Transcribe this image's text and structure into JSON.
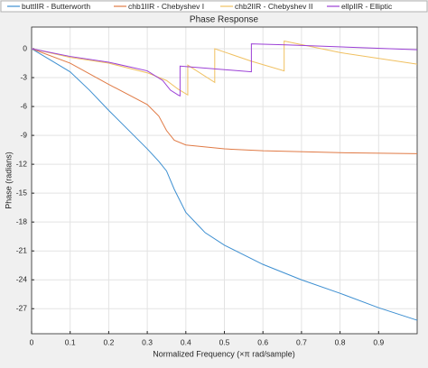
{
  "chart_data": {
    "type": "line",
    "title": "Phase Response",
    "x_label": "Normalized Frequency (×π rad/sample)",
    "y_label": "Phase (radians)",
    "xlim": [
      0,
      1
    ],
    "ylim": [
      -29.6,
      2.25
    ],
    "xticks": [
      0,
      0.1,
      0.2,
      0.3,
      0.4,
      0.5,
      0.6,
      0.7,
      0.8,
      0.9
    ],
    "yticks": [
      0,
      -3,
      -6,
      -9,
      -12,
      -15,
      -18,
      -21,
      -24,
      -27
    ],
    "grid": true,
    "legend": "top",
    "series": [
      {
        "name": "buttIIR - Butterworth",
        "color": "#3d8fd1",
        "x": [
          0,
          0.05,
          0.1,
          0.15,
          0.2,
          0.25,
          0.3,
          0.33,
          0.35,
          0.37,
          0.4,
          0.45,
          0.5,
          0.6,
          0.7,
          0.8,
          0.9,
          1.0
        ],
        "values": [
          0,
          -1.2,
          -2.4,
          -4.3,
          -6.4,
          -8.4,
          -10.4,
          -11.7,
          -12.7,
          -14.6,
          -17,
          -19.1,
          -20.4,
          -22.4,
          -24,
          -25.4,
          -26.9,
          -28.2
        ]
      },
      {
        "name": "chb1IIR - Chebyshev I",
        "color": "#e07a45",
        "x": [
          0,
          0.1,
          0.2,
          0.3,
          0.33,
          0.35,
          0.37,
          0.4,
          0.5,
          0.6,
          0.8,
          1.0
        ],
        "values": [
          0,
          -1.5,
          -3.7,
          -5.8,
          -7,
          -8.5,
          -9.5,
          -10,
          -10.4,
          -10.6,
          -10.8,
          -10.9
        ]
      },
      {
        "name": "chb2IIR - Chebyshev II",
        "color": "#f0c060",
        "x": [
          0,
          0.1,
          0.2,
          0.3,
          0.35,
          0.38,
          0.405,
          0.405,
          0.475,
          0.475,
          0.57,
          0.655,
          0.655,
          0.8,
          1.0
        ],
        "values": [
          0,
          -0.9,
          -1.5,
          -2.5,
          -3.3,
          -4.2,
          -4.8,
          -1.7,
          -3.5,
          0,
          -1.3,
          -2.3,
          0.8,
          -0.4,
          -1.6
        ]
      },
      {
        "name": "ellpIIR - Elliptic",
        "color": "#9b3fd6",
        "x": [
          0,
          0.1,
          0.2,
          0.3,
          0.34,
          0.36,
          0.38,
          0.385,
          0.385,
          0.57,
          0.57,
          0.66,
          1.0
        ],
        "values": [
          0,
          -0.8,
          -1.4,
          -2.3,
          -3.3,
          -4.3,
          -4.8,
          -4.9,
          -1.8,
          -2.4,
          0.5,
          0.4,
          -0.1
        ]
      }
    ]
  }
}
